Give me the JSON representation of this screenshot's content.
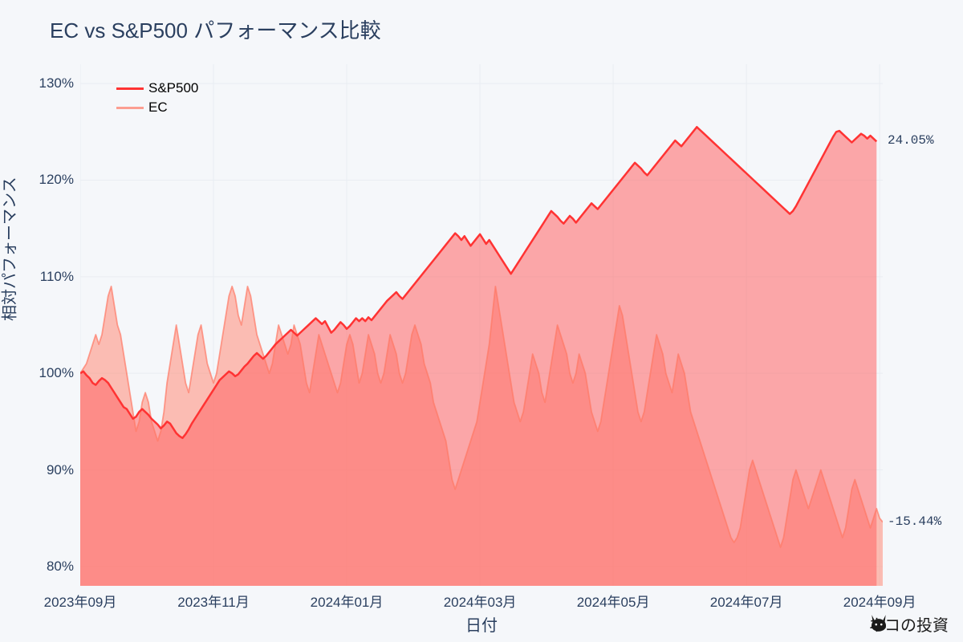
{
  "title": "EC vs S&P500 パフォーマンス比較",
  "xaxis_label": "日付",
  "yaxis_label": "相対パフォーマンス",
  "background_color": "#f5f7fa",
  "grid_color": "#e9edf2",
  "text_color": "#2a3f5f",
  "title_fontsize": 26,
  "axis_label_fontsize": 20,
  "tick_fontsize": 17,
  "ylim": [
    78,
    132
  ],
  "yticks": [
    80,
    90,
    100,
    110,
    120,
    130
  ],
  "ytick_labels": [
    "80%",
    "90%",
    "100%",
    "110%",
    "120%",
    "130%"
  ],
  "x_count": 260,
  "xticks_idx": [
    0,
    43,
    86,
    129,
    172,
    215,
    258
  ],
  "xtick_labels": [
    "2023年09月",
    "2023年11月",
    "2024年01月",
    "2024年03月",
    "2024年05月",
    "2024年07月",
    "2024年09月"
  ],
  "series": [
    {
      "name": "S&P500",
      "color": "#ff3333",
      "fill_color": "rgba(255,100,100,0.55)",
      "line_width": 2.5,
      "end_label": "24.05%",
      "data": [
        100,
        100.2,
        99.8,
        99.5,
        99,
        98.8,
        99.2,
        99.5,
        99.3,
        99,
        98.5,
        98,
        97.5,
        97,
        96.5,
        96.3,
        95.8,
        95.3,
        95.5,
        96,
        96.3,
        96,
        95.7,
        95.3,
        95,
        94.7,
        94.3,
        94.6,
        95,
        94.8,
        94.3,
        93.8,
        93.5,
        93.3,
        93.7,
        94.2,
        94.8,
        95.3,
        95.8,
        96.3,
        96.8,
        97.3,
        97.8,
        98.3,
        98.8,
        99.3,
        99.6,
        99.9,
        100.2,
        100,
        99.7,
        99.9,
        100.3,
        100.7,
        101,
        101.4,
        101.8,
        102.1,
        101.8,
        101.5,
        101.8,
        102.2,
        102.6,
        103,
        103.3,
        103.6,
        103.9,
        104.2,
        104.5,
        104.2,
        103.9,
        104.2,
        104.5,
        104.8,
        105.1,
        105.4,
        105.7,
        105.4,
        105.1,
        105.4,
        104.8,
        104.2,
        104.5,
        104.9,
        105.3,
        105,
        104.6,
        104.9,
        105.3,
        105.7,
        105.4,
        105.7,
        105.4,
        105.8,
        105.5,
        105.9,
        106.3,
        106.7,
        107.1,
        107.5,
        107.8,
        108.1,
        108.4,
        108,
        107.7,
        108.1,
        108.5,
        108.9,
        109.3,
        109.7,
        110.1,
        110.5,
        110.9,
        111.3,
        111.7,
        112.1,
        112.5,
        112.9,
        113.3,
        113.7,
        114.1,
        114.5,
        114.2,
        113.8,
        114.2,
        113.7,
        113.2,
        113.6,
        114,
        114.4,
        113.9,
        113.4,
        113.8,
        113.3,
        112.8,
        112.3,
        111.8,
        111.3,
        110.8,
        110.3,
        110.8,
        111.3,
        111.8,
        112.3,
        112.8,
        113.3,
        113.8,
        114.3,
        114.8,
        115.3,
        115.8,
        116.3,
        116.8,
        116.5,
        116.2,
        115.8,
        115.5,
        115.9,
        116.3,
        116,
        115.6,
        116,
        116.4,
        116.8,
        117.2,
        117.6,
        117.3,
        117,
        117.4,
        117.8,
        118.2,
        118.6,
        119,
        119.4,
        119.8,
        120.2,
        120.6,
        121,
        121.4,
        121.8,
        121.5,
        121.2,
        120.8,
        120.5,
        120.9,
        121.3,
        121.7,
        122.1,
        122.5,
        122.9,
        123.3,
        123.7,
        124.1,
        123.8,
        123.5,
        123.9,
        124.3,
        124.7,
        125.1,
        125.5,
        125.2,
        124.9,
        124.6,
        124.3,
        124,
        123.7,
        123.4,
        123.1,
        122.8,
        122.5,
        122.2,
        121.9,
        121.6,
        121.3,
        121,
        120.7,
        120.4,
        120.1,
        119.8,
        119.5,
        119.2,
        118.9,
        118.6,
        118.3,
        118,
        117.7,
        117.4,
        117.1,
        116.8,
        116.5,
        116.8,
        117.3,
        117.9,
        118.5,
        119.1,
        119.7,
        120.3,
        120.9,
        121.5,
        122.1,
        122.7,
        123.3,
        123.9,
        124.5,
        125,
        125.1,
        124.8,
        124.5,
        124.2,
        123.9,
        124.2,
        124.5,
        124.8,
        124.6,
        124.3,
        124.6,
        124.3,
        124
      ]
    },
    {
      "name": "EC",
      "color": "rgba(255,120,100,0.7)",
      "fill_color": "rgba(255,140,120,0.55)",
      "line_width": 1.8,
      "end_label": "-15.44%",
      "data": [
        100,
        100.5,
        101,
        102,
        103,
        104,
        103,
        104,
        106,
        108,
        109,
        107,
        105,
        104,
        102,
        100,
        98,
        96,
        94,
        95,
        97,
        98,
        97,
        95,
        94,
        93,
        94,
        96,
        99,
        101,
        103,
        105,
        103,
        101,
        99,
        98,
        100,
        102,
        104,
        105,
        103,
        101,
        100,
        99,
        100,
        102,
        104,
        106,
        108,
        109,
        108,
        106,
        105,
        107,
        109,
        108,
        106,
        104,
        103,
        102,
        101,
        100,
        101,
        103,
        105,
        104,
        103,
        102,
        103,
        105,
        104,
        103,
        101,
        99,
        98,
        100,
        102,
        104,
        103,
        102,
        101,
        100,
        99,
        98,
        99,
        101,
        103,
        104,
        103,
        101,
        99,
        100,
        102,
        104,
        103,
        102,
        100,
        99,
        100,
        102,
        104,
        103,
        102,
        100,
        99,
        100,
        102,
        104,
        105,
        104,
        103,
        101,
        100,
        99,
        97,
        96,
        95,
        94,
        93,
        91,
        89,
        88,
        89,
        90,
        91,
        92,
        93,
        94,
        95,
        97,
        99,
        101,
        103,
        106,
        109,
        107,
        105,
        103,
        101,
        99,
        97,
        96,
        95,
        96,
        98,
        100,
        102,
        101,
        100,
        98,
        97,
        99,
        101,
        103,
        105,
        104,
        103,
        102,
        100,
        99,
        100,
        102,
        101,
        100,
        98,
        96,
        95,
        94,
        95,
        97,
        99,
        101,
        103,
        105,
        107,
        106,
        104,
        102,
        100,
        98,
        96,
        95,
        96,
        98,
        100,
        102,
        104,
        103,
        102,
        100,
        99,
        98,
        100,
        102,
        101,
        100,
        98,
        96,
        95,
        94,
        93,
        92,
        91,
        90,
        89,
        88,
        87,
        86,
        85,
        84,
        83,
        82.5,
        83,
        84,
        86,
        88,
        90,
        91,
        90,
        89,
        88,
        87,
        86,
        85,
        84,
        83,
        82,
        83,
        85,
        87,
        89,
        90,
        89,
        88,
        87,
        86,
        87,
        88,
        89,
        90,
        89,
        88,
        87,
        86,
        85,
        84,
        83,
        84,
        86,
        88,
        89,
        88,
        87,
        86,
        85,
        84,
        85,
        86,
        85,
        84.6
      ]
    }
  ],
  "watermark": "ネコの投資"
}
